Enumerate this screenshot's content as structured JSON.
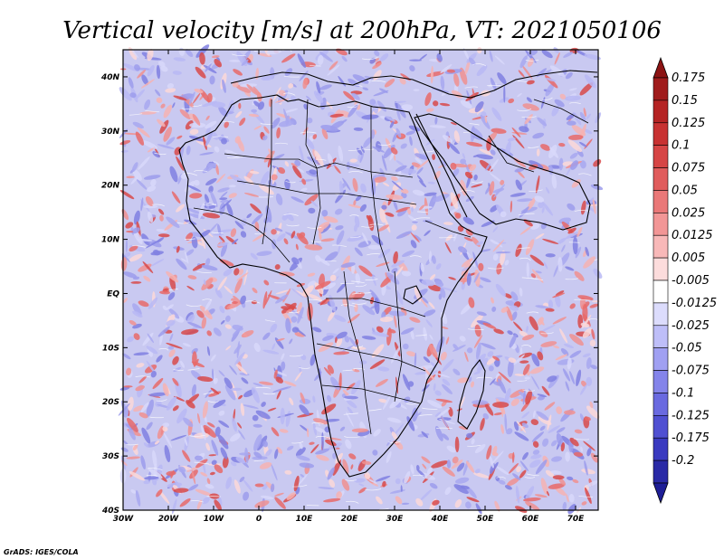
{
  "title": "Vertical velocity [m/s] at 200hPa, VT: 2021050106",
  "credit": "GrADS: IGES/COLA",
  "map": {
    "variable": "Vertical velocity",
    "units": "m/s",
    "level": "200hPa",
    "valid_time": "2021050106",
    "lon_range": [
      -30,
      75
    ],
    "lat_range": [
      -40,
      45
    ],
    "x_ticks": [
      {
        "value": -30,
        "label": "30W"
      },
      {
        "value": -20,
        "label": "20W"
      },
      {
        "value": -10,
        "label": "10W"
      },
      {
        "value": 0,
        "label": "0"
      },
      {
        "value": 10,
        "label": "10E"
      },
      {
        "value": 20,
        "label": "20E"
      },
      {
        "value": 30,
        "label": "30E"
      },
      {
        "value": 40,
        "label": "40E"
      },
      {
        "value": 50,
        "label": "50E"
      },
      {
        "value": 60,
        "label": "60E"
      },
      {
        "value": 70,
        "label": "70E"
      }
    ],
    "y_ticks": [
      {
        "value": 40,
        "label": "40N"
      },
      {
        "value": 30,
        "label": "30N"
      },
      {
        "value": 20,
        "label": "20N"
      },
      {
        "value": 10,
        "label": "10N"
      },
      {
        "value": 0,
        "label": "EQ"
      },
      {
        "value": -10,
        "label": "10S"
      },
      {
        "value": -20,
        "label": "20S"
      },
      {
        "value": -30,
        "label": "30S"
      },
      {
        "value": -40,
        "label": "40S"
      }
    ]
  },
  "colorbar": {
    "bins": [
      {
        "label": "0.175",
        "color": "#a01c1c"
      },
      {
        "label": "0.15",
        "color": "#b52424"
      },
      {
        "label": "0.125",
        "color": "#c83232"
      },
      {
        "label": "0.1",
        "color": "#d64545"
      },
      {
        "label": "0.075",
        "color": "#e05c5c"
      },
      {
        "label": "0.05",
        "color": "#ea7878"
      },
      {
        "label": "0.025",
        "color": "#f29696"
      },
      {
        "label": "0.0125",
        "color": "#f8b8b8"
      },
      {
        "label": "0.005",
        "color": "#fcdcdc"
      },
      {
        "label": "-0.005",
        "color": "#ffffff"
      },
      {
        "label": "-0.0125",
        "color": "#dcdcfc"
      },
      {
        "label": "-0.025",
        "color": "#bebef8"
      },
      {
        "label": "-0.05",
        "color": "#a0a0f2"
      },
      {
        "label": "-0.075",
        "color": "#8484ea"
      },
      {
        "label": "-0.1",
        "color": "#6a6ae0"
      },
      {
        "label": "-0.125",
        "color": "#5050d2"
      },
      {
        "label": "-0.175",
        "color": "#3a3ac0"
      },
      {
        "label": "-0.2",
        "color": "#2a2aa6"
      }
    ],
    "top_arrow_color": "#8c1414",
    "bottom_arrow_color": "#1e1e96"
  }
}
